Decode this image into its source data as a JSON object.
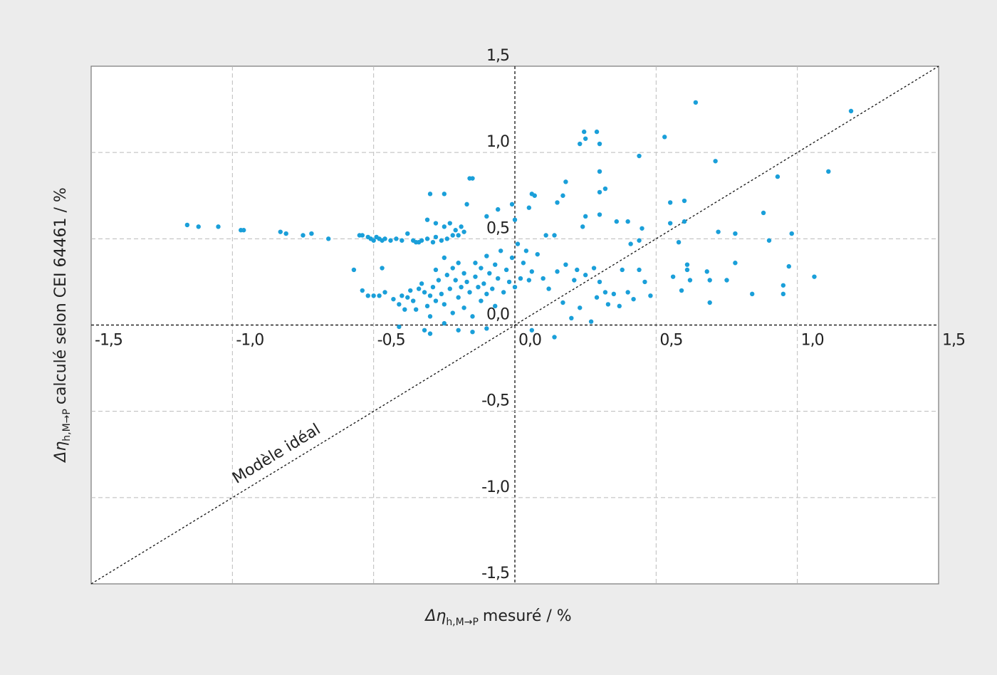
{
  "chart_data": {
    "type": "scatter",
    "xlabel": {
      "symbol": "Δη",
      "subscript": "h,M→P",
      "text": "mesuré / %"
    },
    "ylabel": {
      "symbol": "Δη",
      "subscript": "h,M→P",
      "text": "calculé selon CEI 64461 / %"
    },
    "annotation": "Modèle idéal",
    "color": "#1a9fd9",
    "grid": true,
    "xlim": [
      -1.5,
      1.5
    ],
    "ylim": [
      -1.5,
      1.5
    ],
    "xticks": [
      {
        "value": -1.5,
        "label": "-1,5"
      },
      {
        "value": -1.0,
        "label": "-1,0"
      },
      {
        "value": -0.5,
        "label": "-0,5"
      },
      {
        "value": 0,
        "label": "0,0"
      },
      {
        "value": 0.5,
        "label": "0,5"
      },
      {
        "value": 1.0,
        "label": "1,0"
      },
      {
        "value": 1.5,
        "label": "1,5"
      }
    ],
    "yticks": [
      {
        "value": -1.5,
        "label": "-1,5"
      },
      {
        "value": -1.0,
        "label": "-1,0"
      },
      {
        "value": -0.5,
        "label": "-0,5"
      },
      {
        "value": 0,
        "label": "0,0"
      },
      {
        "value": 0.5,
        "label": "0,5"
      },
      {
        "value": 1.0,
        "label": "1,0"
      },
      {
        "value": 1.5,
        "label": "1,5"
      }
    ],
    "x": [
      -1.16,
      -1.12,
      -1.05,
      -0.97,
      -0.96,
      -0.83,
      -0.81,
      -0.75,
      -0.72,
      -0.66,
      -0.55,
      -0.54,
      -0.52,
      -0.51,
      -0.5,
      -0.49,
      -0.48,
      -0.47,
      -0.46,
      -0.44,
      -0.42,
      -0.4,
      -0.38,
      -0.36,
      -0.35,
      -0.34,
      -0.33,
      -0.31,
      -0.29,
      -0.28,
      -0.26,
      -0.24,
      -0.22,
      -0.2,
      -0.18,
      -0.31,
      -0.28,
      -0.25,
      -0.23,
      -0.21,
      -0.19,
      -0.3,
      -0.25,
      -0.16,
      -0.15,
      -0.17,
      -0.1,
      -0.06,
      -0.01,
      0,
      0.05,
      0.06,
      0.07,
      0.15,
      0.17,
      0.18,
      0.23,
      0.245,
      0.25,
      0.29,
      0.3,
      0.3,
      0.32,
      0.3,
      0.3,
      0.25,
      0.24,
      0.36,
      0.4,
      0.41,
      0.44,
      0.45,
      0.44,
      0.53,
      0.64,
      0.71,
      0.55,
      0.6,
      0.6,
      0.55,
      0.58,
      0.61,
      0.61,
      0.56,
      0.62,
      0.59,
      0.68,
      0.69,
      0.69,
      0.72,
      0.78,
      0.78,
      0.75,
      0.84,
      0.88,
      0.9,
      0.93,
      0.98,
      0.97,
      0.95,
      0.95,
      1.06,
      1.11,
      1.19,
      -0.57,
      -0.54,
      -0.52,
      -0.5,
      -0.48,
      -0.46,
      -0.47,
      -0.43,
      -0.41,
      -0.4,
      -0.39,
      -0.38,
      -0.37,
      -0.36,
      -0.35,
      -0.34,
      -0.33,
      -0.32,
      -0.31,
      -0.3,
      -0.3,
      -0.29,
      -0.28,
      -0.28,
      -0.27,
      -0.26,
      -0.25,
      -0.25,
      -0.24,
      -0.23,
      -0.22,
      -0.22,
      -0.21,
      -0.2,
      -0.2,
      -0.19,
      -0.18,
      -0.18,
      -0.17,
      -0.16,
      -0.15,
      -0.14,
      -0.14,
      -0.13,
      -0.12,
      -0.12,
      -0.11,
      -0.1,
      -0.1,
      -0.09,
      -0.08,
      -0.07,
      -0.07,
      -0.06,
      -0.05,
      -0.04,
      -0.03,
      -0.02,
      -0.01,
      0,
      0.01,
      0.02,
      0.03,
      0.04,
      0.05,
      0.06,
      0.08,
      0.1,
      0.11,
      0.12,
      0.14,
      0.15,
      0.17,
      0.18,
      0.2,
      0.21,
      0.22,
      0.23,
      0.25,
      0.27,
      0.28,
      0.29,
      0.3,
      0.32,
      0.33,
      0.35,
      0.37,
      0.38,
      0.4,
      0.42,
      0.44,
      0.46,
      0.48,
      -0.32,
      -0.3,
      -0.2,
      -0.15,
      -0.1,
      0.06,
      0.14,
      -0.41,
      -0.25
    ],
    "values": [
      0.58,
      0.57,
      0.57,
      0.55,
      0.55,
      0.54,
      0.53,
      0.52,
      0.53,
      0.5,
      0.52,
      0.52,
      0.51,
      0.5,
      0.49,
      0.51,
      0.5,
      0.49,
      0.5,
      0.49,
      0.5,
      0.49,
      0.53,
      0.49,
      0.48,
      0.48,
      0.49,
      0.5,
      0.48,
      0.51,
      0.49,
      0.5,
      0.52,
      0.52,
      0.54,
      0.61,
      0.59,
      0.57,
      0.59,
      0.55,
      0.57,
      0.76,
      0.76,
      0.85,
      0.85,
      0.7,
      0.63,
      0.67,
      0.7,
      0.61,
      0.68,
      0.76,
      0.75,
      0.71,
      0.75,
      0.83,
      1.05,
      1.12,
      1.08,
      1.12,
      1.05,
      0.89,
      0.79,
      0.77,
      0.64,
      0.63,
      0.57,
      0.6,
      0.6,
      0.47,
      0.49,
      0.56,
      0.98,
      1.09,
      1.29,
      0.95,
      0.71,
      0.72,
      0.6,
      0.59,
      0.48,
      0.35,
      0.32,
      0.28,
      0.26,
      0.2,
      0.31,
      0.26,
      0.13,
      0.54,
      0.53,
      0.36,
      0.26,
      0.18,
      0.65,
      0.49,
      0.86,
      0.53,
      0.34,
      0.23,
      0.18,
      0.28,
      0.89,
      1.24,
      0.32,
      0.2,
      0.17,
      0.17,
      0.17,
      0.19,
      0.33,
      0.15,
      0.12,
      0.17,
      0.09,
      0.16,
      0.2,
      0.14,
      0.09,
      0.21,
      0.24,
      0.19,
      0.11,
      0.17,
      0.05,
      0.22,
      0.14,
      0.32,
      0.26,
      0.18,
      0.39,
      0.12,
      0.29,
      0.21,
      0.33,
      0.07,
      0.26,
      0.36,
      0.16,
      0.22,
      0.3,
      0.1,
      0.25,
      0.19,
      0.05,
      0.36,
      0.28,
      0.22,
      0.14,
      0.33,
      0.24,
      0.18,
      0.4,
      0.3,
      0.21,
      0.11,
      0.35,
      0.27,
      0.43,
      0.19,
      0.32,
      0.25,
      0.39,
      0.22,
      0.47,
      0.27,
      0.36,
      0.43,
      0.26,
      0.31,
      0.41,
      0.27,
      0.52,
      0.21,
      0.52,
      0.31,
      0.13,
      0.35,
      0.04,
      0.26,
      0.32,
      0.1,
      0.29,
      0.02,
      0.33,
      0.16,
      0.25,
      0.19,
      0.12,
      0.18,
      0.11,
      0.32,
      0.19,
      0.15,
      0.32,
      0.25,
      0.17,
      -0.03,
      -0.05,
      -0.03,
      -0.04,
      -0.02,
      -0.03,
      -0.07,
      -0.01,
      0.01
    ]
  }
}
